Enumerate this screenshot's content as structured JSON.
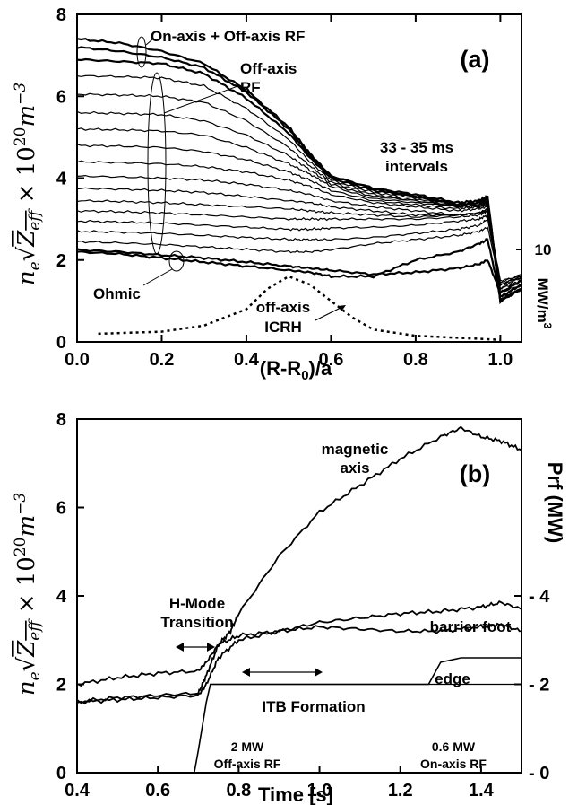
{
  "chart_data": [
    {
      "panel": "(a)",
      "type": "line",
      "xlabel": "(R-R0)/a",
      "ylabel": "n_e √Z_eff × 10^20 m^-3",
      "right_label": "MW/m^3",
      "right_tick": "10",
      "xlim": [
        0.0,
        1.05
      ],
      "ylim": [
        0,
        8
      ],
      "xticks": [
        "0.0",
        "0.2",
        "0.4",
        "0.6",
        "0.8",
        "1.0"
      ],
      "yticks": [
        "0",
        "2",
        "4",
        "6",
        "8"
      ],
      "annotations": {
        "top": "On-axis + Off-axis RF",
        "off1": "Off-axis",
        "off2": "RF",
        "int1": "33 - 35 ms",
        "int2": "intervals",
        "ohmic": "Ohmic",
        "icrh1": "off-axis",
        "icrh2": "ICRH"
      },
      "x": [
        0.0,
        0.1,
        0.2,
        0.3,
        0.4,
        0.5,
        0.55,
        0.6,
        0.7,
        0.8,
        0.9,
        0.95,
        0.97,
        1.0,
        1.05
      ],
      "series": [
        {
          "values": [
            2.2,
            2.15,
            2.05,
            1.95,
            1.85,
            1.75,
            1.7,
            1.6,
            1.6,
            2.0,
            2.2,
            2.4,
            2.5,
            1.1,
            1.4
          ]
        },
        {
          "values": [
            2.25,
            2.2,
            2.12,
            2.05,
            1.95,
            1.85,
            1.8,
            1.75,
            1.65,
            1.7,
            1.8,
            1.9,
            2.0,
            1.2,
            1.5
          ]
        },
        {
          "values": [
            2.45,
            2.42,
            2.38,
            2.32,
            2.26,
            2.2,
            2.2,
            2.25,
            2.4,
            2.5,
            2.6,
            2.7,
            2.8,
            1.4,
            1.6
          ]
        },
        {
          "values": [
            2.7,
            2.68,
            2.65,
            2.6,
            2.55,
            2.5,
            2.5,
            2.5,
            2.55,
            2.65,
            2.75,
            2.85,
            3.0,
            1.4,
            1.6
          ]
        },
        {
          "values": [
            2.95,
            2.93,
            2.9,
            2.85,
            2.8,
            2.75,
            2.75,
            2.78,
            2.8,
            2.85,
            2.95,
            3.0,
            3.1,
            1.45,
            1.65
          ]
        },
        {
          "values": [
            3.2,
            3.18,
            3.15,
            3.1,
            3.05,
            3.0,
            3.0,
            3.0,
            3.0,
            3.0,
            3.05,
            3.1,
            3.2,
            1.5,
            1.6
          ]
        },
        {
          "values": [
            3.45,
            3.43,
            3.4,
            3.35,
            3.3,
            3.25,
            3.2,
            3.15,
            3.1,
            3.05,
            3.1,
            3.15,
            3.2,
            1.4,
            1.55
          ]
        },
        {
          "values": [
            3.75,
            3.73,
            3.7,
            3.65,
            3.55,
            3.45,
            3.4,
            3.3,
            3.2,
            3.1,
            3.1,
            3.15,
            3.25,
            1.3,
            1.6
          ]
        },
        {
          "values": [
            4.05,
            4.03,
            4.0,
            3.95,
            3.85,
            3.7,
            3.6,
            3.45,
            3.3,
            3.2,
            3.1,
            3.15,
            3.25,
            1.3,
            1.5
          ]
        },
        {
          "values": [
            4.4,
            4.38,
            4.35,
            4.28,
            4.15,
            3.95,
            3.8,
            3.6,
            3.4,
            3.3,
            3.2,
            3.25,
            3.3,
            1.2,
            1.5
          ]
        },
        {
          "values": [
            4.8,
            4.78,
            4.75,
            4.65,
            4.45,
            4.15,
            3.95,
            3.7,
            3.45,
            3.35,
            3.25,
            3.3,
            3.35,
            1.2,
            1.4
          ]
        },
        {
          "values": [
            5.2,
            5.18,
            5.15,
            5.05,
            4.75,
            4.35,
            4.1,
            3.8,
            3.5,
            3.4,
            3.3,
            3.3,
            3.4,
            1.1,
            1.4
          ]
        },
        {
          "values": [
            5.6,
            5.58,
            5.55,
            5.4,
            5.05,
            4.55,
            4.2,
            3.85,
            3.55,
            3.45,
            3.3,
            3.35,
            3.4,
            1.1,
            1.3
          ]
        },
        {
          "values": [
            6.05,
            6.03,
            6.0,
            5.85,
            5.4,
            4.75,
            4.3,
            3.9,
            3.6,
            3.45,
            3.3,
            3.35,
            3.45,
            1.05,
            1.3
          ]
        },
        {
          "values": [
            6.5,
            6.48,
            6.45,
            6.25,
            5.7,
            4.95,
            4.4,
            3.95,
            3.65,
            3.5,
            3.3,
            3.35,
            3.45,
            1.0,
            1.3
          ]
        },
        {
          "values": [
            6.9,
            6.85,
            6.8,
            6.55,
            5.95,
            5.1,
            4.5,
            4.0,
            3.7,
            3.55,
            3.35,
            3.4,
            3.5,
            1.0,
            1.3
          ]
        },
        {
          "values": [
            7.2,
            7.1,
            6.95,
            6.7,
            6.1,
            5.2,
            4.55,
            4.05,
            3.75,
            3.55,
            3.35,
            3.4,
            3.5,
            1.0,
            1.3
          ]
        },
        {
          "values": [
            7.4,
            7.3,
            7.1,
            6.8,
            6.15,
            5.25,
            4.6,
            4.05,
            3.75,
            3.6,
            3.4,
            3.45,
            3.55,
            1.0,
            1.3
          ]
        }
      ],
      "icrh_profile": {
        "x": [
          0.05,
          0.2,
          0.3,
          0.4,
          0.45,
          0.5,
          0.55,
          0.6,
          0.65,
          0.7,
          0.8,
          0.9,
          1.0
        ],
        "values": [
          0.2,
          0.25,
          0.4,
          0.8,
          1.3,
          1.6,
          1.4,
          1.0,
          0.6,
          0.3,
          0.15,
          0.1,
          0.05
        ]
      }
    },
    {
      "panel": "(b)",
      "type": "line",
      "xlabel": "Time [s]",
      "ylabel": "n_e √Z_eff × 10^20 m^-3",
      "right_label": "Prf (MW)",
      "xlim": [
        0.4,
        1.5
      ],
      "ylim": [
        0,
        8
      ],
      "y2lim": [
        0,
        8
      ],
      "xticks": [
        "0.4",
        "0.6",
        "0.8",
        "1.0",
        "1.2",
        "1.4"
      ],
      "yticks": [
        "0",
        "2",
        "4",
        "6",
        "8"
      ],
      "y2ticks": [
        "0",
        "2",
        "4"
      ],
      "annotations": {
        "axis1": "magnetic",
        "axis2": "axis",
        "hmode1": "H-Mode",
        "hmode2": "Transition",
        "foot": "barrier foot",
        "edge": "edge",
        "itb": "ITB Formation",
        "rf1a": "2 MW",
        "rf1b": "Off-axis RF",
        "rf2a": "0.6 MW",
        "rf2b": "On-axis RF"
      },
      "series": [
        {
          "name": "magnetic axis",
          "x": [
            0.4,
            0.5,
            0.6,
            0.7,
            0.72,
            0.75,
            0.78,
            0.8,
            0.9,
            1.0,
            1.1,
            1.2,
            1.3,
            1.35,
            1.4,
            1.45,
            1.5
          ],
          "values": [
            1.6,
            1.7,
            1.75,
            1.8,
            2.2,
            2.9,
            3.2,
            3.6,
            4.9,
            5.9,
            6.5,
            7.1,
            7.6,
            7.8,
            7.6,
            7.5,
            7.3
          ]
        },
        {
          "name": "barrier foot",
          "x": [
            0.4,
            0.5,
            0.6,
            0.7,
            0.72,
            0.75,
            0.8,
            0.9,
            1.0,
            1.1,
            1.2,
            1.3,
            1.4,
            1.45,
            1.5
          ],
          "values": [
            1.6,
            1.65,
            1.7,
            1.75,
            2.0,
            2.6,
            3.0,
            3.2,
            3.4,
            3.5,
            3.6,
            3.65,
            3.75,
            3.85,
            3.7
          ]
        },
        {
          "name": "edge",
          "x": [
            0.4,
            0.5,
            0.6,
            0.7,
            0.72,
            0.75,
            0.8,
            0.9,
            1.0,
            1.1,
            1.2,
            1.3,
            1.4,
            1.45,
            1.5
          ],
          "values": [
            2.0,
            2.15,
            2.25,
            2.3,
            2.5,
            2.9,
            3.1,
            3.2,
            3.3,
            3.25,
            3.2,
            3.2,
            3.3,
            3.35,
            3.2
          ]
        },
        {
          "name": "Prf",
          "x": [
            0.4,
            0.69,
            0.7,
            0.72,
            0.73,
            1.27,
            1.3,
            1.35,
            1.5
          ],
          "values": [
            0.0,
            0.0,
            0.5,
            1.6,
            2.0,
            2.0,
            2.5,
            2.6,
            2.6
          ]
        }
      ],
      "rf_baseline": {
        "x": [
          0.73,
          1.5
        ],
        "values": [
          2.0,
          2.0
        ]
      }
    }
  ]
}
